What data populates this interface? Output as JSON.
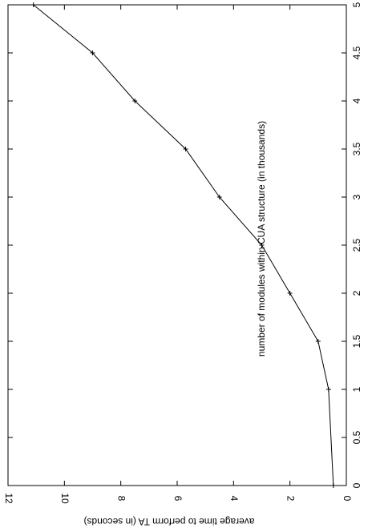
{
  "chart_data": {
    "type": "line",
    "x_label": "number of modules within CUA structure (in thousands)",
    "y_label": "average time to perform TA (in seconds)",
    "x": [
      0,
      1,
      1.5,
      2,
      2.5,
      3,
      3.5,
      4,
      4.5,
      5
    ],
    "series": [
      {
        "color": "#000000",
        "values": [
          0.46,
          0.63,
          1.0,
          2.0,
          3.0,
          4.5,
          5.7,
          7.5,
          9.0,
          11.1
        ]
      }
    ],
    "xlim": [
      0,
      5
    ],
    "xticks": [
      0,
      0.5,
      1,
      1.5,
      2,
      2.5,
      3,
      3.5,
      4,
      4.5,
      5
    ],
    "ylim": [
      0,
      12
    ],
    "yticks": [
      0,
      2,
      4,
      6,
      8,
      10,
      12
    ]
  }
}
